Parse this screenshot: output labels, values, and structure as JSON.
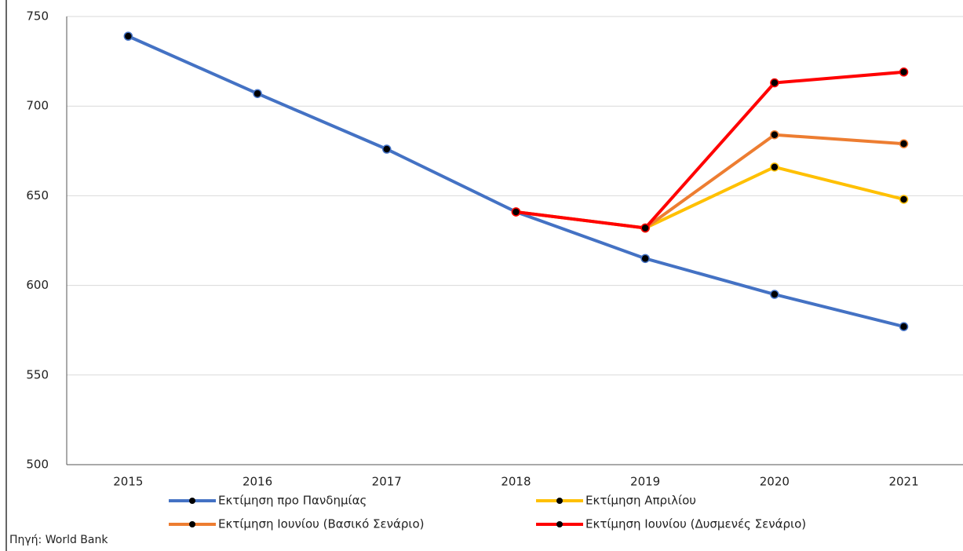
{
  "chart_data": {
    "type": "line",
    "categories": [
      "2015",
      "2016",
      "2017",
      "2018",
      "2019",
      "2020",
      "2021"
    ],
    "series": [
      {
        "name": "Εκτίμηση προ Πανδημίας",
        "color": "#4472c4",
        "values": [
          739,
          707,
          676,
          641,
          615,
          595,
          577
        ]
      },
      {
        "name": "Εκτίμηση Απριλίου",
        "color": "#ffc000",
        "values": [
          null,
          null,
          null,
          641,
          632,
          666,
          648
        ]
      },
      {
        "name": "Εκτίμηση Ιουνίου (Βασικό Σενάριο)",
        "color": "#ed7d31",
        "values": [
          null,
          null,
          null,
          641,
          632,
          684,
          679
        ]
      },
      {
        "name": "Εκτίμηση Ιουνίου (Δυσμενές Σενάριο)",
        "color": "#ff0000",
        "values": [
          null,
          null,
          null,
          641,
          632,
          713,
          719
        ]
      }
    ],
    "ylim": [
      500,
      750
    ],
    "yticks": [
      500,
      550,
      600,
      650,
      700,
      750
    ],
    "grid": true,
    "source": "Πηγή: World Bank"
  }
}
